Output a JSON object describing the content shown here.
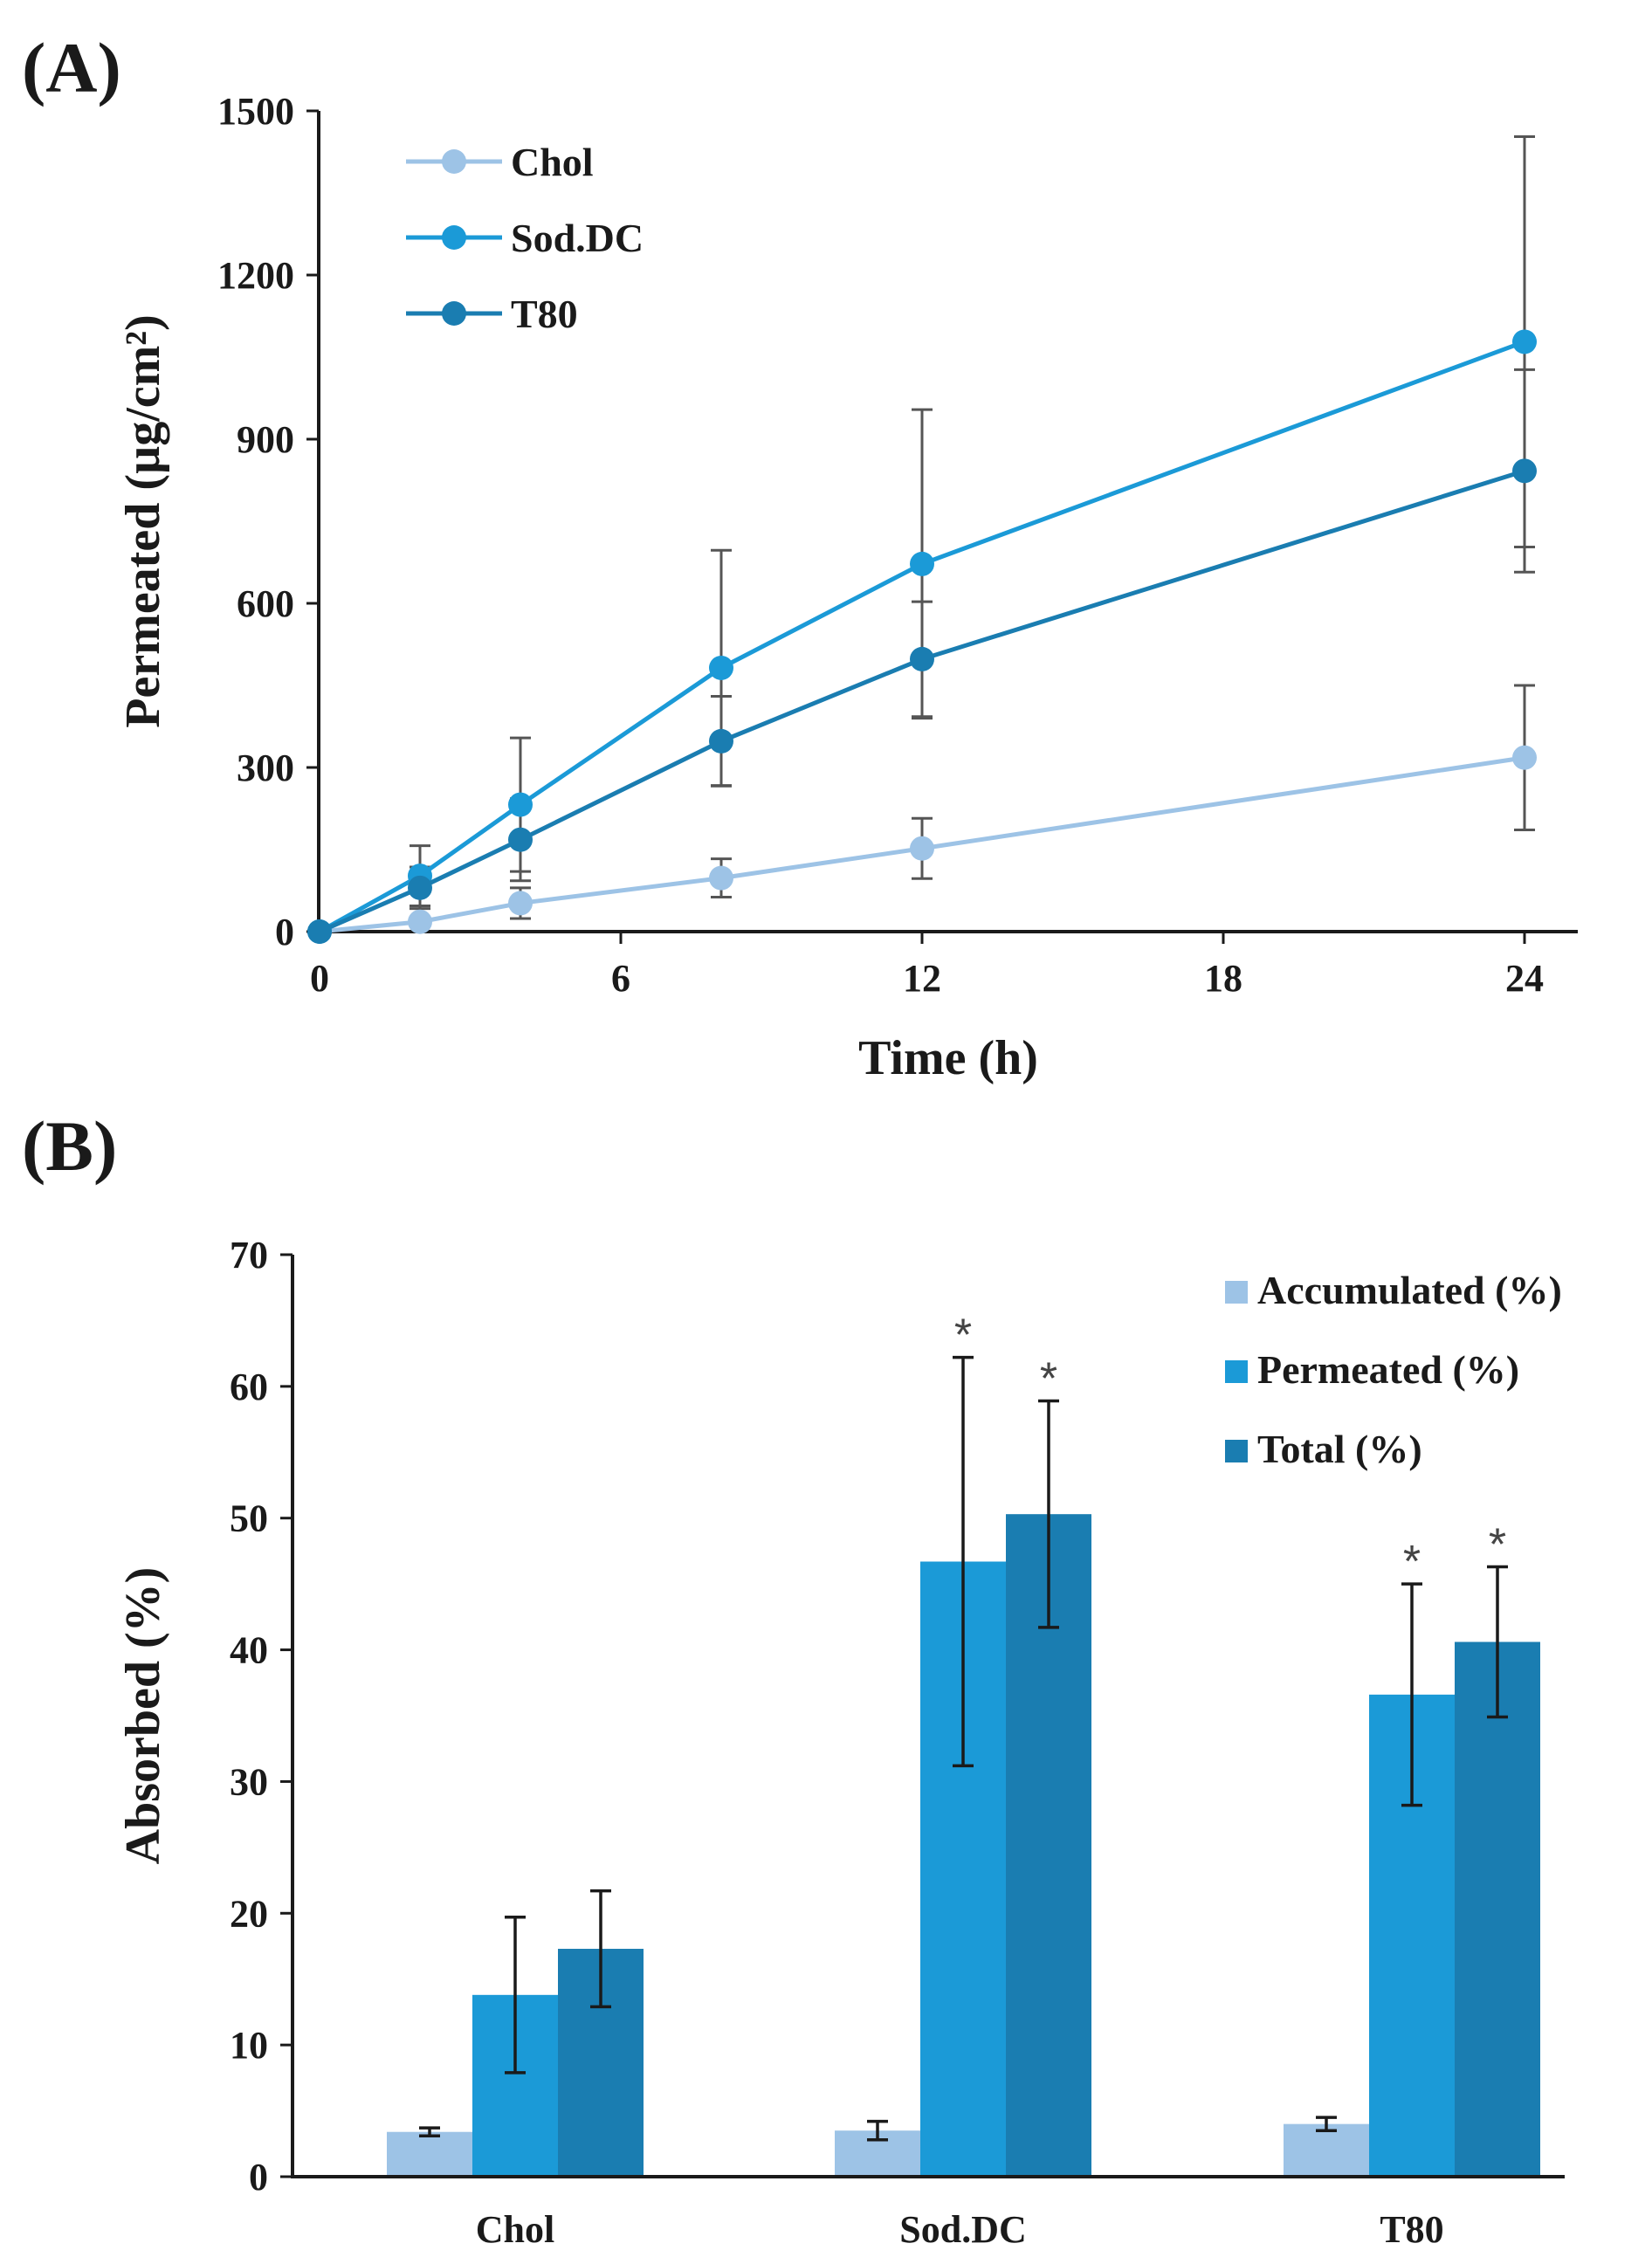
{
  "chart_data": [
    {
      "panel": "(A)",
      "type": "line",
      "xlabel": "Time (h)",
      "ylabel": "Permeated (µg/cm²)",
      "xlim": [
        0,
        25
      ],
      "ylim": [
        0,
        1500
      ],
      "xticks": [
        0,
        6,
        12,
        18,
        24
      ],
      "yticks": [
        0,
        300,
        600,
        900,
        1200,
        1500
      ],
      "legend_position": "top-left",
      "x": [
        0,
        2,
        4,
        8,
        12,
        24
      ],
      "series": [
        {
          "name": "Chol",
          "color": "#9dc3e6",
          "values": [
            0,
            18,
            52,
            98,
            152,
            318
          ],
          "errors": [
            0,
            8,
            28,
            35,
            55,
            132
          ]
        },
        {
          "name": "Sod.DC",
          "color": "#1b9ad7",
          "values": [
            0,
            102,
            232,
            482,
            672,
            1078
          ],
          "errors": [
            0,
            55,
            122,
            215,
            282,
            375
          ]
        },
        {
          "name": "T80",
          "color": "#1a7db1",
          "values": [
            0,
            80,
            168,
            348,
            498,
            842
          ],
          "errors": [
            0,
            38,
            75,
            82,
            105,
            185
          ]
        }
      ]
    },
    {
      "panel": "(B)",
      "type": "bar",
      "xlabel": "",
      "ylabel": "Absorbed (%)",
      "ylim": [
        0,
        70
      ],
      "yticks": [
        0,
        10,
        20,
        30,
        40,
        50,
        60,
        70
      ],
      "categories": [
        "Chol",
        "Sod.DC",
        "T80"
      ],
      "legend_position": "top-right",
      "series": [
        {
          "name": "Accumulated (%)",
          "color": "#9dc3e6",
          "values": [
            3.4,
            3.5,
            4.0
          ],
          "errors": [
            0.3,
            0.7,
            0.5
          ],
          "significant": [
            false,
            false,
            false
          ]
        },
        {
          "name": "Permeated (%)",
          "color": "#1b9ad7",
          "values": [
            13.8,
            46.7,
            36.6
          ],
          "errors": [
            5.9,
            15.5,
            8.4
          ],
          "significant": [
            false,
            true,
            true
          ]
        },
        {
          "name": "Total (%)",
          "color": "#1a7db1",
          "values": [
            17.3,
            50.3,
            40.6
          ],
          "errors": [
            4.4,
            8.6,
            5.7
          ],
          "significant": [
            false,
            true,
            true
          ]
        }
      ],
      "significance_marker": "*"
    }
  ]
}
